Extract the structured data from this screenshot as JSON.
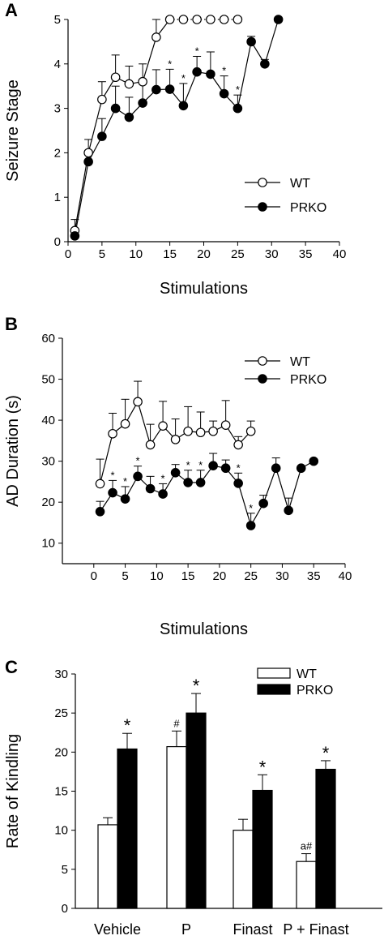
{
  "chart_data": [
    {
      "panel": "A",
      "type": "line",
      "xlabel": "Stimulations",
      "ylabel": "Seizure Stage",
      "xlim": [
        0,
        40
      ],
      "ylim": [
        0,
        5
      ],
      "xticks": [
        "0",
        "5",
        "10",
        "15",
        "20",
        "25",
        "30",
        "35",
        "40"
      ],
      "yticks": [
        "0",
        "1",
        "2",
        "3",
        "4",
        "5"
      ],
      "legend": {
        "position": "bottom-right",
        "entries": [
          "WT",
          "PRKO"
        ]
      },
      "series": [
        {
          "name": "WT",
          "marker": "open-circle",
          "line": "solid then dotted after x=15",
          "x": [
            1,
            3,
            5,
            7,
            9,
            11,
            13,
            15,
            17,
            19,
            21,
            23,
            25
          ],
          "y": [
            0.25,
            2.0,
            3.2,
            3.7,
            3.55,
            3.6,
            4.6,
            5.0,
            5.0,
            5.0,
            5.0,
            5.0,
            5.0
          ],
          "err": [
            0,
            0.3,
            0.4,
            0.5,
            0.4,
            0.4,
            0.4,
            0,
            0,
            0,
            0,
            0,
            0
          ]
        },
        {
          "name": "PRKO",
          "marker": "filled-circle",
          "line": "solid",
          "x": [
            1,
            3,
            5,
            7,
            9,
            11,
            13,
            15,
            17,
            19,
            21,
            23,
            25,
            27,
            29,
            31
          ],
          "y": [
            0.13,
            1.8,
            2.37,
            3.0,
            2.8,
            3.12,
            3.42,
            3.43,
            3.06,
            3.82,
            3.77,
            3.33,
            3.0,
            4.5,
            4.0,
            5.0
          ],
          "err": [
            0.37,
            0.25,
            0.4,
            0.5,
            0.45,
            0.5,
            0.45,
            0.45,
            0.5,
            0.35,
            0.5,
            0.4,
            0.3,
            0.12,
            0.1,
            0
          ],
          "significant": [
            false,
            false,
            false,
            false,
            false,
            false,
            false,
            true,
            true,
            true,
            false,
            true,
            true,
            false,
            false,
            false
          ]
        }
      ],
      "significance_marker": "*"
    },
    {
      "panel": "B",
      "type": "line",
      "xlabel": "Stimulations",
      "ylabel": "AD Duration (s)",
      "xlim": [
        -5,
        40
      ],
      "ylim": [
        5,
        60
      ],
      "xticks": [
        "0",
        "5",
        "10",
        "15",
        "20",
        "25",
        "30",
        "35",
        "40"
      ],
      "yticks": [
        "10",
        "20",
        "30",
        "40",
        "50",
        "60"
      ],
      "legend": {
        "position": "top-right",
        "entries": [
          "WT",
          "PRKO"
        ]
      },
      "series": [
        {
          "name": "WT",
          "marker": "open-circle",
          "x": [
            1,
            3,
            5,
            7,
            9,
            11,
            13,
            15,
            17,
            19,
            21,
            23,
            25
          ],
          "y": [
            24.5,
            36.7,
            39.1,
            44.5,
            34.0,
            38.6,
            35.3,
            37.3,
            37.0,
            37.3,
            38.8,
            34.0,
            37.3
          ],
          "err": [
            6.0,
            5.0,
            6.0,
            5.0,
            5.0,
            6.0,
            5.0,
            6.0,
            5.0,
            2.5,
            6.0,
            2.0,
            2.5
          ]
        },
        {
          "name": "PRKO",
          "marker": "filled-circle",
          "x": [
            1,
            3,
            5,
            7,
            9,
            11,
            13,
            15,
            17,
            19,
            21,
            23,
            25,
            27,
            29,
            31,
            33,
            35
          ],
          "y": [
            17.7,
            22.3,
            20.8,
            26.3,
            23.3,
            22.0,
            27.2,
            24.8,
            24.8,
            28.9,
            28.3,
            24.6,
            14.3,
            19.7,
            28.3,
            18.0,
            28.3,
            30.0
          ],
          "err": [
            2.5,
            3.0,
            3.0,
            2.5,
            3.0,
            2.5,
            2.0,
            3.0,
            3.0,
            3.0,
            2.0,
            2.5,
            3.0,
            2.0,
            2.5,
            3.0,
            0,
            0
          ],
          "significant": [
            false,
            true,
            true,
            true,
            false,
            true,
            false,
            true,
            true,
            false,
            false,
            true,
            true,
            false,
            false,
            false,
            false,
            false
          ]
        }
      ],
      "significance_marker": "*"
    },
    {
      "panel": "C",
      "type": "bar",
      "ylabel": "Rate of Kindling",
      "ylim": [
        0,
        30
      ],
      "yticks": [
        "0",
        "5",
        "10",
        "15",
        "20",
        "25",
        "30"
      ],
      "categories": [
        "Vehicle",
        "P",
        "Finast",
        "P + Finast"
      ],
      "legend": {
        "position": "top-right",
        "entries": [
          "WT",
          "PRKO"
        ]
      },
      "series": [
        {
          "name": "WT",
          "fill": "open",
          "values": [
            10.7,
            20.7,
            10.0,
            6.0
          ],
          "err": [
            0.9,
            2.0,
            1.4,
            1.0
          ],
          "annotations": [
            "",
            "#",
            "",
            "a#"
          ]
        },
        {
          "name": "PRKO",
          "fill": "solid",
          "values": [
            20.4,
            25.0,
            15.1,
            17.8
          ],
          "err": [
            2.0,
            2.5,
            2.0,
            1.1
          ],
          "annotations": [
            "*",
            "*",
            "*",
            "*"
          ]
        }
      ]
    }
  ]
}
